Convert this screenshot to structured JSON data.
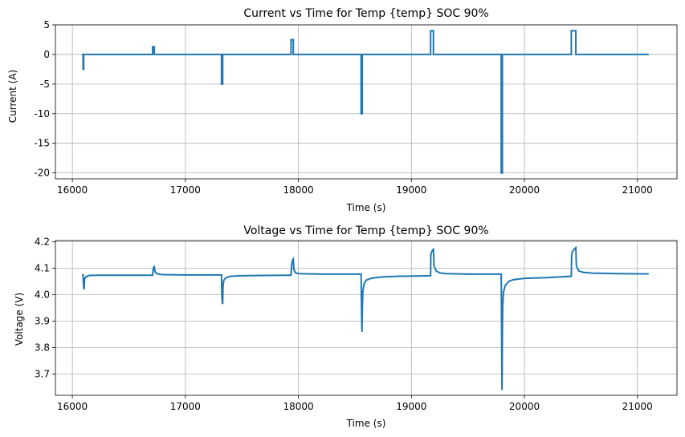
{
  "chart_data": [
    {
      "type": "line",
      "title": "Current vs Time for Temp {temp} SOC 90%",
      "xlabel": "Time (s)",
      "ylabel": "Current (A)",
      "xlim": [
        15850,
        21350
      ],
      "ylim": [
        -21,
        5
      ],
      "xticks": [
        16000,
        17000,
        18000,
        19000,
        20000,
        21000
      ],
      "yticks": [
        5,
        0,
        -5,
        -10,
        -15,
        -20
      ],
      "grid": true,
      "line_color": "#1f77b4",
      "series": [
        {
          "x": [
            16085,
            16095,
            16095,
            16100,
            16100,
            16105,
            16105,
            16710,
            16710,
            16725,
            16725,
            16730,
            16730,
            17320,
            17320,
            17330,
            17330,
            17935,
            17935,
            17955,
            17955,
            18555,
            18555,
            18565,
            18565,
            19170,
            19170,
            19195,
            19195,
            19795,
            19795,
            19805,
            19805,
            20415,
            20415,
            20455,
            20455,
            21100
          ],
          "y": [
            0,
            0,
            -2.5,
            -2.5,
            0,
            0,
            0,
            0,
            1.3,
            1.3,
            0,
            0,
            0,
            0,
            -5,
            -5,
            0,
            0,
            2.5,
            2.5,
            0,
            0,
            -10,
            -10,
            0,
            0,
            4,
            4,
            0,
            0,
            -20,
            -20,
            0,
            0,
            4,
            4,
            0,
            0
          ]
        }
      ]
    },
    {
      "type": "line",
      "title": "Voltage vs Time for Temp {temp} SOC 90%",
      "xlabel": "Time (s)",
      "ylabel": "Voltage (V)",
      "xlim": [
        15850,
        21350
      ],
      "ylim": [
        3.62,
        4.205
      ],
      "xticks": [
        16000,
        17000,
        18000,
        19000,
        20000,
        21000
      ],
      "yticks": [
        4.2,
        4.1,
        4.0,
        3.9,
        3.8,
        3.7
      ],
      "grid": true,
      "line_color": "#1f77b4",
      "series": [
        {
          "x": [
            16085,
            16095,
            16097,
            16100,
            16104,
            16108,
            16120,
            16150,
            16250,
            16500,
            16700,
            16710,
            16715,
            16720,
            16725,
            16730,
            16740,
            16760,
            16800,
            17000,
            17300,
            17320,
            17322,
            17325,
            17330,
            17333,
            17340,
            17360,
            17400,
            17500,
            17700,
            17900,
            17935,
            17940,
            17945,
            17950,
            17955,
            17960,
            17975,
            18000,
            18200,
            18555,
            18557,
            18560,
            18563,
            18566,
            18570,
            18580,
            18600,
            18650,
            18750,
            18900,
            19170,
            19172,
            19180,
            19190,
            19195,
            19200,
            19220,
            19250,
            19300,
            19500,
            19795,
            19797,
            19800,
            19802,
            19805,
            19808,
            19815,
            19830,
            19860,
            19900,
            20000,
            20200,
            20415,
            20418,
            20425,
            20440,
            20455,
            20460,
            20480,
            20520,
            20600,
            20800,
            21100
          ],
          "y": [
            4.075,
            4.075,
            4.05,
            4.03,
            4.02,
            4.06,
            4.068,
            4.073,
            4.074,
            4.074,
            4.074,
            4.074,
            4.095,
            4.104,
            4.106,
            4.09,
            4.082,
            4.078,
            4.076,
            4.075,
            4.075,
            4.075,
            4.02,
            3.98,
            3.965,
            4.03,
            4.055,
            4.065,
            4.07,
            4.072,
            4.073,
            4.074,
            4.074,
            4.11,
            4.125,
            4.132,
            4.135,
            4.095,
            4.083,
            4.08,
            4.078,
            4.078,
            4.0,
            3.92,
            3.86,
            3.95,
            4.01,
            4.04,
            4.055,
            4.063,
            4.068,
            4.07,
            4.072,
            4.15,
            4.163,
            4.17,
            4.172,
            4.11,
            4.09,
            4.083,
            4.08,
            4.078,
            4.078,
            3.95,
            3.75,
            3.64,
            3.85,
            3.96,
            4.01,
            4.035,
            4.05,
            4.057,
            4.062,
            4.065,
            4.07,
            4.15,
            4.163,
            4.172,
            4.178,
            4.11,
            4.09,
            4.085,
            4.082,
            4.08,
            4.079
          ]
        }
      ]
    }
  ]
}
